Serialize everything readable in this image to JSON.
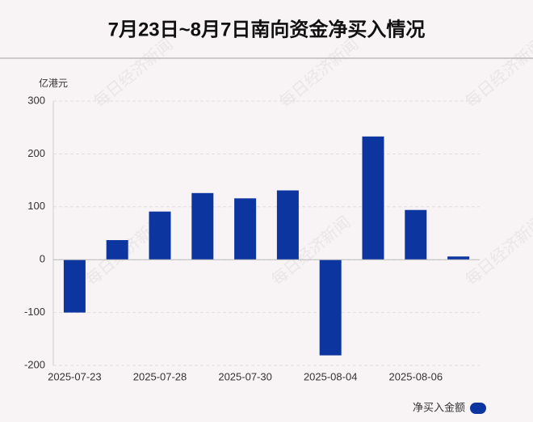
{
  "chart_data": {
    "type": "bar",
    "title": "7月23日~8月7日南向资金净买入情况",
    "y_unit": "亿港元",
    "categories": [
      "2025-07-23",
      null,
      "2025-07-28",
      null,
      "2025-07-30",
      null,
      "2025-08-04",
      null,
      "2025-08-06",
      null
    ],
    "series": [
      {
        "name": "净买入金额",
        "color": "#0d35a0",
        "values": [
          -100,
          37,
          91,
          126,
          116,
          131,
          -181,
          233,
          94,
          6
        ]
      }
    ],
    "ylim": [
      -200,
      300
    ],
    "yticks": [
      -200,
      -100,
      0,
      100,
      200,
      300
    ],
    "grid": true,
    "legend": "bottom-right",
    "watermark": "每日经济新闻"
  }
}
